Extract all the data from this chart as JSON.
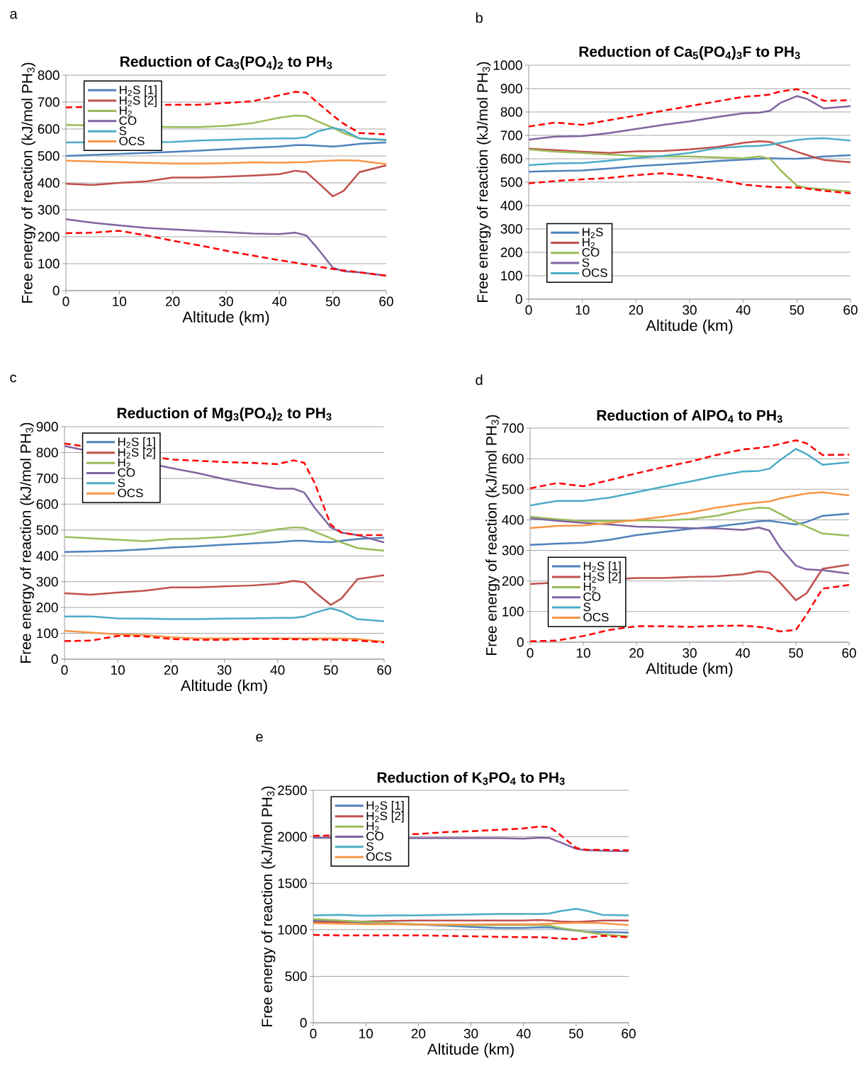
{
  "chart_data": [
    {
      "type": "line",
      "title": "Reduction of Ca$_{3}$(PO$_{4}$)$_{2}$ to PH$_{3}$",
      "xlabel": "Altitude (km)",
      "ylabel": "Free energy of reaction (kJ/mol PH$_{3}$)",
      "annotations": [
        "a"
      ],
      "xlim": [
        0,
        60
      ],
      "xticks": [
        0,
        10,
        20,
        30,
        40,
        50,
        60
      ],
      "ylim": [
        0,
        800
      ],
      "yticks": [
        0,
        100,
        200,
        300,
        400,
        500,
        600,
        700,
        800
      ],
      "grid": "y",
      "legend": "top left",
      "marker": "none",
      "x": [
        0,
        5,
        10,
        15,
        20,
        25,
        30,
        35,
        40,
        43,
        45,
        47,
        50,
        52,
        55,
        60
      ],
      "series": [
        {
          "name": "H$_{2}$S [1]",
          "color": "#4f81bd",
          "values": [
            500,
            null,
            null,
            null,
            515,
            520,
            525,
            530,
            535,
            540,
            540,
            538,
            535,
            538,
            545,
            550
          ]
        },
        {
          "name": "H$_{2}$S [2]",
          "color": "#c0504d",
          "values": [
            397,
            392,
            400,
            405,
            420,
            420,
            423,
            427,
            432,
            445,
            440,
            405,
            350,
            370,
            440,
            465
          ]
        },
        {
          "name": "H$_{2}$",
          "color": "#9bbb59",
          "values": [
            615,
            null,
            null,
            null,
            607,
            607,
            612,
            622,
            642,
            650,
            648,
            630,
            605,
            585,
            565,
            558
          ]
        },
        {
          "name": "CO",
          "color": "#8064a2",
          "values": [
            265,
            252,
            242,
            233,
            227,
            222,
            217,
            212,
            210,
            215,
            205,
            160,
            85,
            72,
            68,
            55
          ]
        },
        {
          "name": "S",
          "color": "#4bacc6",
          "values": [
            550,
            null,
            null,
            null,
            552,
            557,
            560,
            563,
            565,
            565,
            570,
            590,
            605,
            595,
            565,
            560
          ]
        },
        {
          "name": "OCS",
          "color": "#f79646",
          "values": [
            482,
            null,
            null,
            null,
            472,
            472,
            473,
            476,
            475,
            476,
            477,
            480,
            483,
            484,
            482,
            470
          ]
        },
        {
          "color": "#ff0000",
          "line_style": "dashed",
          "values": [
            680,
            null,
            null,
            null,
            690,
            690,
            697,
            703,
            725,
            738,
            735,
            700,
            650,
            620,
            585,
            580
          ]
        },
        {
          "color": "#ff0000",
          "line_style": "dashed",
          "values": [
            213,
            215,
            222,
            205,
            185,
            168,
            148,
            130,
            113,
            103,
            97,
            90,
            80,
            75,
            68,
            55
          ]
        }
      ]
    },
    {
      "type": "line",
      "title": "Reduction of Ca$_{5}$(PO$_{4}$)$_{3}$F to PH$_{3}$",
      "xlabel": "Altitude (km)",
      "ylabel": "Free energy of reaction (kJ/mol PH$_{3}$)",
      "annotations": [
        "b"
      ],
      "xlim": [
        0,
        60
      ],
      "xticks": [
        0,
        10,
        20,
        30,
        40,
        50,
        60
      ],
      "ylim": [
        0,
        1000
      ],
      "yticks": [
        0,
        100,
        200,
        300,
        400,
        500,
        600,
        700,
        800,
        900,
        1000
      ],
      "grid": "y",
      "legend": "bottom left",
      "marker": "none",
      "x": [
        0,
        5,
        10,
        15,
        20,
        25,
        30,
        35,
        40,
        43,
        45,
        47,
        50,
        52,
        55,
        60
      ],
      "series": [
        {
          "name": "H$_{2}$S",
          "color": "#4f81bd",
          "values": [
            545,
            548,
            550,
            558,
            568,
            575,
            582,
            590,
            596,
            600,
            602,
            601,
            600,
            603,
            610,
            615
          ]
        },
        {
          "name": "H$_{2}$",
          "color": "#c0504d",
          "values": [
            643,
            637,
            630,
            625,
            632,
            633,
            640,
            650,
            668,
            675,
            672,
            655,
            630,
            615,
            595,
            585
          ]
        },
        {
          "name": "CO",
          "color": "#9bbb59",
          "values": [
            640,
            630,
            625,
            618,
            612,
            610,
            610,
            606,
            602,
            610,
            600,
            550,
            485,
            475,
            470,
            460
          ]
        },
        {
          "name": "S",
          "color": "#8064a2",
          "values": [
            682,
            695,
            697,
            710,
            727,
            745,
            760,
            778,
            795,
            797,
            805,
            840,
            868,
            855,
            815,
            825
          ]
        },
        {
          "name": "OCS",
          "color": "#4bacc6",
          "values": [
            573,
            580,
            582,
            592,
            603,
            612,
            625,
            645,
            653,
            655,
            660,
            668,
            680,
            685,
            688,
            678
          ]
        },
        {
          "color": "#ff0000",
          "line_style": "dashed",
          "values": [
            738,
            755,
            745,
            765,
            785,
            805,
            825,
            845,
            865,
            870,
            875,
            888,
            898,
            880,
            848,
            850
          ]
        },
        {
          "color": "#ff0000",
          "line_style": "dashed",
          "values": [
            495,
            505,
            512,
            518,
            530,
            538,
            528,
            512,
            490,
            483,
            480,
            478,
            477,
            472,
            463,
            452
          ]
        }
      ]
    },
    {
      "type": "line",
      "title": "Reduction of Mg$_{3}$(PO$_{4}$)$_{2}$ to PH$_{3}$",
      "xlabel": "Altitude (km)",
      "ylabel": "Free energy of reaction (kJ/mol PH$_{3}$)",
      "annotations": [
        "c"
      ],
      "xlim": [
        0,
        60
      ],
      "xticks": [
        0,
        10,
        20,
        30,
        40,
        50,
        60
      ],
      "ylim": [
        0,
        900
      ],
      "yticks": [
        0,
        100,
        200,
        300,
        400,
        500,
        600,
        700,
        800,
        900
      ],
      "grid": "y",
      "legend": "top left",
      "marker": "none",
      "x": [
        0,
        5,
        10,
        15,
        20,
        25,
        30,
        35,
        40,
        43,
        45,
        47,
        50,
        52,
        55,
        60
      ],
      "series": [
        {
          "name": "H$_{2}$S [1]",
          "color": "#4f81bd",
          "values": [
            415,
            417,
            420,
            425,
            432,
            437,
            443,
            448,
            453,
            458,
            458,
            455,
            453,
            458,
            465,
            470
          ]
        },
        {
          "name": "H$_{2}$S [2]",
          "color": "#c0504d",
          "values": [
            255,
            250,
            258,
            265,
            278,
            278,
            282,
            285,
            292,
            303,
            298,
            260,
            210,
            235,
            310,
            325
          ]
        },
        {
          "name": "H$_{2}$",
          "color": "#9bbb59",
          "values": [
            473,
            468,
            462,
            457,
            465,
            467,
            473,
            485,
            503,
            510,
            508,
            493,
            468,
            452,
            430,
            420
          ]
        },
        {
          "name": "CO",
          "color": "#8064a2",
          "values": [
            825,
            null,
            null,
            null,
            740,
            720,
            697,
            677,
            660,
            660,
            645,
            585,
            510,
            490,
            480,
            452
          ]
        },
        {
          "name": "S",
          "color": "#4bacc6",
          "values": [
            165,
            165,
            158,
            157,
            155,
            155,
            157,
            158,
            160,
            160,
            165,
            180,
            197,
            185,
            155,
            147
          ]
        },
        {
          "name": "OCS",
          "color": "#f79646",
          "values": [
            110,
            103,
            96,
            93,
            85,
            80,
            80,
            80,
            80,
            80,
            80,
            80,
            80,
            80,
            78,
            67
          ]
        },
        {
          "color": "#ff0000",
          "line_style": "dashed",
          "values": [
            835,
            null,
            null,
            null,
            773,
            768,
            763,
            760,
            755,
            770,
            760,
            680,
            520,
            490,
            480,
            480
          ]
        },
        {
          "color": "#ff0000",
          "line_style": "dashed",
          "values": [
            70,
            72,
            90,
            88,
            78,
            75,
            75,
            78,
            78,
            77,
            76,
            76,
            75,
            74,
            72,
            65
          ]
        }
      ]
    },
    {
      "type": "line",
      "title": "Reduction of AlPO$_{4}$ to PH$_{3}$",
      "xlabel": "Altitude (km)",
      "ylabel": "Free energy of reaction (kJ/mol PH$_{3}$)",
      "annotations": [
        "d"
      ],
      "xlim": [
        0,
        60
      ],
      "xticks": [
        0,
        10,
        20,
        30,
        40,
        50,
        60
      ],
      "ylim": [
        0,
        700
      ],
      "yticks": [
        0,
        100,
        200,
        300,
        400,
        500,
        600,
        700
      ],
      "grid": "y",
      "legend": "bottom left",
      "marker": "none",
      "x": [
        0,
        5,
        10,
        15,
        20,
        25,
        30,
        35,
        40,
        43,
        45,
        47,
        50,
        52,
        55,
        60
      ],
      "series": [
        {
          "name": "H$_{2}$S [1]",
          "color": "#4f81bd",
          "values": [
            318,
            322,
            325,
            335,
            350,
            360,
            370,
            378,
            388,
            395,
            397,
            392,
            385,
            393,
            413,
            420
          ]
        },
        {
          "name": "H$_{2}$S [2]",
          "color": "#c0504d",
          "values": [
            190,
            null,
            null,
            null,
            210,
            210,
            213,
            215,
            222,
            232,
            228,
            195,
            137,
            160,
            240,
            253
          ]
        },
        {
          "name": "H$_{2}$",
          "color": "#9bbb59",
          "values": [
            410,
            402,
            396,
            396,
            398,
            398,
            402,
            413,
            432,
            440,
            438,
            420,
            393,
            378,
            355,
            348
          ]
        },
        {
          "name": "CO",
          "color": "#8064a2",
          "values": [
            405,
            397,
            390,
            385,
            378,
            376,
            373,
            372,
            367,
            375,
            365,
            310,
            250,
            238,
            235,
            224
          ]
        },
        {
          "name": "S",
          "color": "#4bacc6",
          "values": [
            447,
            462,
            462,
            473,
            490,
            508,
            525,
            543,
            558,
            560,
            567,
            595,
            632,
            615,
            580,
            588
          ]
        },
        {
          "name": "OCS",
          "color": "#f79646",
          "values": [
            373,
            380,
            382,
            390,
            400,
            410,
            423,
            440,
            452,
            457,
            460,
            470,
            480,
            486,
            490,
            480
          ]
        },
        {
          "color": "#ff0000",
          "line_style": "dashed",
          "values": [
            503,
            520,
            510,
            530,
            552,
            572,
            590,
            612,
            630,
            635,
            640,
            648,
            660,
            650,
            612,
            613
          ]
        },
        {
          "color": "#ff0000",
          "line_style": "dashed",
          "values": [
            3,
            5,
            20,
            40,
            52,
            52,
            50,
            53,
            54,
            50,
            45,
            35,
            40,
            90,
            175,
            187
          ]
        }
      ]
    },
    {
      "type": "line",
      "title": "Reduction of K$_{3}$PO$_{4}$ to  PH$_{3}$",
      "xlabel": "Altitude (km)",
      "ylabel": "Free energy of reaction (kJ/mol PH$_{3}$)",
      "annotations": [
        "e"
      ],
      "xlim": [
        0,
        60
      ],
      "xticks": [
        0,
        10,
        20,
        30,
        40,
        50,
        60
      ],
      "ylim": [
        0,
        2500
      ],
      "yticks": [
        0,
        500,
        1000,
        1500,
        2000,
        2500
      ],
      "grid": "y",
      "legend": "top left",
      "marker": "none",
      "x": [
        0,
        5,
        10,
        15,
        20,
        25,
        30,
        35,
        40,
        43,
        45,
        47,
        50,
        52,
        55,
        60
      ],
      "series": [
        {
          "name": "H$_{2}$S [1]",
          "color": "#4f81bd",
          "values": [
            1100,
            1090,
            1075,
            1065,
            1055,
            1045,
            1030,
            1020,
            1020,
            1025,
            1025,
            1010,
            990,
            980,
            975,
            970
          ]
        },
        {
          "name": "H$_{2}$S [2]",
          "color": "#c0504d",
          "values": [
            1085,
            1085,
            1090,
            1095,
            1100,
            1100,
            1100,
            1100,
            1100,
            1105,
            1100,
            1090,
            1085,
            1090,
            1100,
            1100
          ]
        },
        {
          "name": "H$_{2}$",
          "color": "#9bbb59",
          "values": [
            1115,
            1100,
            1085,
            1070,
            1060,
            1050,
            1050,
            1050,
            1050,
            1050,
            1045,
            1020,
            995,
            975,
            950,
            930
          ]
        },
        {
          "name": "CO",
          "color": "#8064a2",
          "values": [
            1990,
            null,
            null,
            null,
            1985,
            1985,
            1985,
            1985,
            1980,
            1990,
            1985,
            1940,
            1870,
            1855,
            1850,
            1845
          ]
        },
        {
          "name": "S",
          "color": "#4bacc6",
          "values": [
            1155,
            1160,
            1150,
            1155,
            1155,
            1160,
            1165,
            1170,
            1170,
            1170,
            1175,
            1200,
            1225,
            1205,
            1160,
            1155
          ]
        },
        {
          "name": "OCS",
          "color": "#f79646",
          "values": [
            1070,
            1065,
            1060,
            1060,
            1055,
            1055,
            1055,
            1060,
            1060,
            1060,
            1065,
            1070,
            1075,
            1075,
            1070,
            1050
          ]
        },
        {
          "color": "#ff0000",
          "line_style": "dashed",
          "values": [
            2010,
            null,
            null,
            null,
            2030,
            2050,
            2060,
            2075,
            2090,
            2110,
            2105,
            2020,
            1880,
            1860,
            1860,
            1855
          ]
        },
        {
          "color": "#ff0000",
          "line_style": "dashed",
          "values": [
            945,
            940,
            940,
            940,
            940,
            935,
            930,
            925,
            920,
            920,
            915,
            905,
            900,
            915,
            935,
            920
          ]
        }
      ]
    }
  ]
}
